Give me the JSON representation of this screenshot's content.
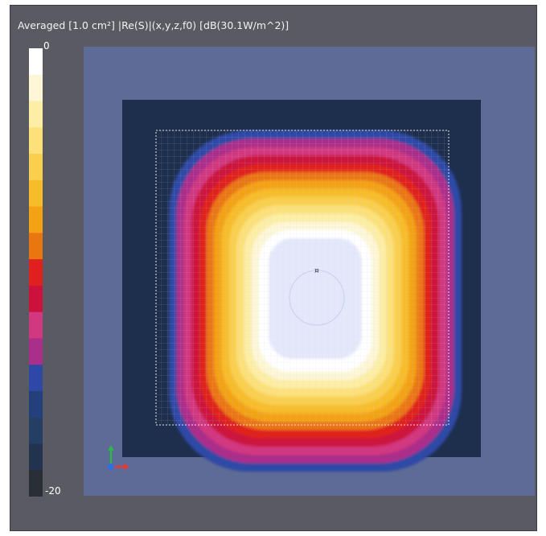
{
  "chart_data": {
    "type": "heatmap",
    "title": "Averaged [1.0 cm²] |Re(S)|(x,y,z,f0) [dB(30.1W/m^2)]",
    "colorbar": {
      "max_label": "0",
      "min_label": "-20",
      "range": [
        -20,
        0
      ],
      "unit": "dB",
      "colors": [
        "#ffffff",
        "#fdf7d8",
        "#fdeea6",
        "#fce07a",
        "#f9cf4e",
        "#f7bc2a",
        "#f3a214",
        "#ea7612",
        "#e0201e",
        "#cc123c",
        "#d13880",
        "#aa2f8a",
        "#2d48a6",
        "#24407c",
        "#253f64",
        "#223350",
        "#2a2e36"
      ]
    },
    "field": {
      "background_color": "#5e6b96",
      "substrate_color": "#1e2f4e",
      "peak_db": 0,
      "hot_spot_label": "¤"
    }
  }
}
